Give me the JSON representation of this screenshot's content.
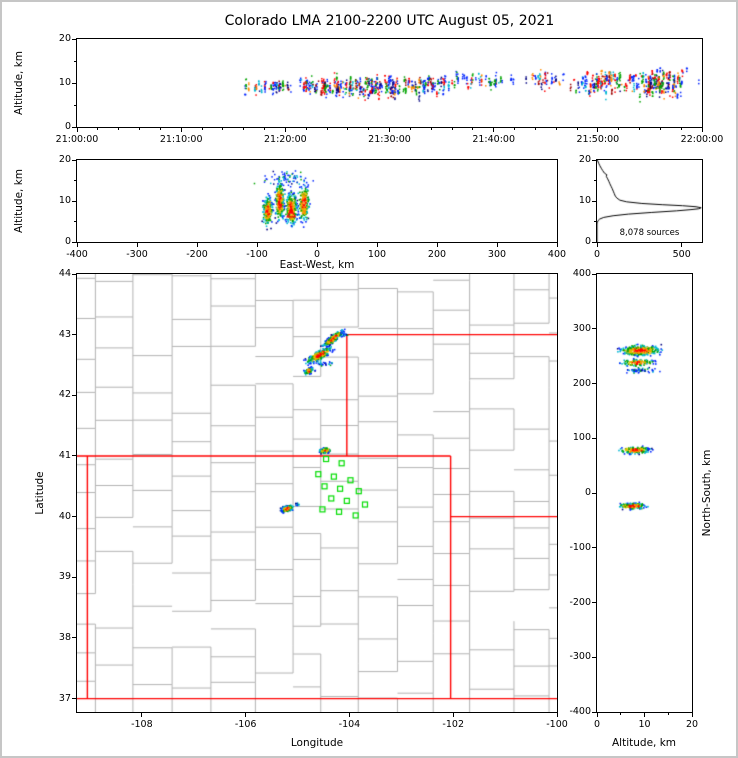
{
  "title": "Colorado LMA 2100-2200 UTC August 05, 2021",
  "palette": {
    "red": "#ff0000",
    "darkred": "#9b0000",
    "orange": "#ff8c00",
    "yellow": "#e3c000",
    "green": "#00a400",
    "cyan": "#00b8d4",
    "blue": "#0026ff",
    "darkblue": "#000080",
    "state_border": "#ff0000",
    "county_border": "#b2b2b2",
    "station": "#00dd00",
    "histogram_line": "#000000",
    "frame": "#000000"
  },
  "chart_data": [
    {
      "id": "time_height",
      "type": "scatter",
      "seed": 303,
      "ylabel": "Altitude, km",
      "x_axis": "Time (UTC) 21:00:00 to 22:00:00, seconds after 21:00:00",
      "xlim": [
        0,
        3600
      ],
      "ylim": [
        0,
        20
      ],
      "xticks": [
        {
          "v": 0,
          "t": "21:00:00"
        },
        {
          "v": 600,
          "t": "21:10:00"
        },
        {
          "v": 1200,
          "t": "21:20:00"
        },
        {
          "v": 1800,
          "t": "21:30:00"
        },
        {
          "v": 2400,
          "t": "21:40:00"
        },
        {
          "v": 3000,
          "t": "21:50:00"
        },
        {
          "v": 3600,
          "t": "22:00:00"
        }
      ],
      "yticks": [
        {
          "v": 0,
          "t": "0"
        },
        {
          "v": 10,
          "t": "10"
        },
        {
          "v": 20,
          "t": "20"
        }
      ],
      "yticks_minor": [
        5,
        15
      ],
      "xtick_minor_step": 120,
      "clusters": [
        {
          "cx": 1100,
          "cy": 9.2,
          "sx": 90,
          "sy": 1.2,
          "n": 130,
          "mode": "flashes"
        },
        {
          "cx": 1450,
          "cy": 9.0,
          "sx": 150,
          "sy": 1.8,
          "n": 320,
          "mode": "flashes"
        },
        {
          "cx": 1750,
          "cy": 9.0,
          "sx": 160,
          "sy": 2.0,
          "n": 330,
          "mode": "flashes"
        },
        {
          "cx": 2050,
          "cy": 9.5,
          "sx": 120,
          "sy": 1.8,
          "n": 180,
          "mode": "flashes"
        },
        {
          "cx": 2350,
          "cy": 10.5,
          "sx": 150,
          "sy": 1.6,
          "n": 130,
          "mode": "flashes"
        },
        {
          "cx": 2700,
          "cy": 10.8,
          "sx": 100,
          "sy": 1.4,
          "n": 80,
          "mode": "flashes"
        },
        {
          "cx": 3050,
          "cy": 10.0,
          "sx": 120,
          "sy": 2.2,
          "n": 280,
          "mode": "flashes"
        },
        {
          "cx": 3350,
          "cy": 10.0,
          "sx": 140,
          "sy": 2.8,
          "n": 430,
          "mode": "flashes"
        }
      ]
    },
    {
      "id": "ew_altitude",
      "type": "scatter",
      "seed": 404,
      "xlabel": "East-West, km",
      "ylabel": "Altitude, km",
      "xlim": [
        -400,
        400
      ],
      "ylim": [
        0,
        20
      ],
      "xticks": [
        {
          "v": -400,
          "t": "-400"
        },
        {
          "v": -300,
          "t": "-300"
        },
        {
          "v": -200,
          "t": "-200"
        },
        {
          "v": -100,
          "t": "-100"
        },
        {
          "v": 0,
          "t": "0"
        },
        {
          "v": 100,
          "t": "100"
        },
        {
          "v": 200,
          "t": "200"
        },
        {
          "v": 300,
          "t": "300"
        },
        {
          "v": 400,
          "t": "400"
        }
      ],
      "yticks": [
        {
          "v": 0,
          "t": "0"
        },
        {
          "v": 10,
          "t": "10"
        },
        {
          "v": 20,
          "t": "20"
        }
      ],
      "yticks_minor": [
        5,
        15
      ],
      "clusters": [
        {
          "cx": -82,
          "cy": 7.5,
          "sx": 5,
          "sy": 2.2,
          "n": 200,
          "mode": "density"
        },
        {
          "cx": -62,
          "cy": 10,
          "sx": 5,
          "sy": 3.0,
          "n": 240,
          "mode": "density"
        },
        {
          "cx": -43,
          "cy": 8,
          "sx": 6,
          "sy": 2.6,
          "n": 260,
          "mode": "density"
        },
        {
          "cx": -22,
          "cy": 9.5,
          "sx": 6,
          "sy": 2.8,
          "n": 200,
          "mode": "density"
        },
        {
          "cx": -50,
          "cy": 15.5,
          "sx": 28,
          "sy": 1.4,
          "n": 70,
          "mode": "sparse"
        }
      ],
      "markers": [
        {
          "shape": "triangle",
          "x": -43,
          "y": 7,
          "color": "#ff0000"
        }
      ]
    },
    {
      "id": "alt_histogram",
      "type": "line",
      "seed": 1,
      "annotation": "8,078 sources",
      "xlim": [
        0,
        620
      ],
      "ylim": [
        0,
        20
      ],
      "xticks": [
        {
          "v": 0,
          "t": "0"
        },
        {
          "v": 500,
          "t": "500"
        }
      ],
      "yticks": [
        {
          "v": 0,
          "t": "0"
        },
        {
          "v": 10,
          "t": "10"
        },
        {
          "v": 20,
          "t": "20"
        }
      ],
      "yticks_minor": [
        5,
        15
      ],
      "profile": {
        "alt_km": [
          0,
          4.4,
          4.8,
          5.2,
          5.6,
          6.0,
          6.4,
          6.8,
          7.2,
          7.6,
          7.9,
          8.1,
          8.35,
          8.6,
          8.85,
          9.1,
          9.4,
          9.8,
          10.2,
          10.7,
          11.2,
          11.8,
          12.4,
          13.0,
          13.6,
          14.2,
          14.8,
          15.4,
          16.0,
          16.4,
          16.8,
          17.4,
          18.0,
          18.6,
          19.2,
          19.8,
          20.0
        ],
        "count": [
          0,
          0,
          2,
          6,
          16,
          40,
          95,
          185,
          320,
          470,
          555,
          600,
          615,
          585,
          505,
          385,
          265,
          175,
          135,
          118,
          108,
          102,
          96,
          90,
          83,
          76,
          70,
          63,
          55,
          58,
          44,
          34,
          25,
          17,
          10,
          4,
          2
        ]
      }
    },
    {
      "id": "plan_map",
      "type": "scatter",
      "seed": 202,
      "xlabel": "Longitude",
      "ylabel": "Latitude",
      "xlim": [
        -109.25,
        -100.0
      ],
      "ylim": [
        36.78,
        44.0
      ],
      "xticks": [
        {
          "v": -108,
          "t": "-108"
        },
        {
          "v": -106,
          "t": "-106"
        },
        {
          "v": -104,
          "t": "-104"
        },
        {
          "v": -102,
          "t": "-102"
        },
        {
          "v": -100,
          "t": "-100"
        }
      ],
      "yticks": [
        {
          "v": 37,
          "t": "37"
        },
        {
          "v": 38,
          "t": "38"
        },
        {
          "v": 39,
          "t": "39"
        },
        {
          "v": 40,
          "t": "40"
        },
        {
          "v": 41,
          "t": "41"
        },
        {
          "v": 42,
          "t": "42"
        },
        {
          "v": 43,
          "t": "43"
        },
        {
          "v": 44,
          "t": "44"
        }
      ],
      "state_lines": [
        [
          -109.05,
          37,
          -109.05,
          41
        ],
        [
          -109.25,
          41,
          -102.05,
          41
        ],
        [
          -102.05,
          41,
          -102.05,
          37
        ],
        [
          -109.25,
          37,
          -100,
          37
        ],
        [
          -104.05,
          41,
          -104.05,
          43
        ],
        [
          -104.05,
          43,
          -100,
          43
        ],
        [
          -102.05,
          40,
          -100,
          40
        ]
      ],
      "stations": [
        [
          -104.45,
          40.95
        ],
        [
          -104.15,
          40.88
        ],
        [
          -104.6,
          40.7
        ],
        [
          -104.3,
          40.66
        ],
        [
          -103.98,
          40.6
        ],
        [
          -104.48,
          40.5
        ],
        [
          -104.18,
          40.46
        ],
        [
          -103.82,
          40.42
        ],
        [
          -104.35,
          40.3
        ],
        [
          -104.05,
          40.26
        ],
        [
          -104.52,
          40.12
        ],
        [
          -104.2,
          40.08
        ],
        [
          -103.88,
          40.02
        ],
        [
          -103.7,
          40.2
        ]
      ],
      "clusters": [
        {
          "cx": -104.32,
          "cy": 42.93,
          "sx": 0.14,
          "sy": 0.035,
          "angle": 35,
          "n": 260,
          "mode": "density"
        },
        {
          "cx": -104.1,
          "cy": 43.0,
          "sx": 0.05,
          "sy": 0.02,
          "angle": 0,
          "n": 25,
          "mode": "sparse"
        },
        {
          "cx": -104.58,
          "cy": 42.66,
          "sx": 0.16,
          "sy": 0.045,
          "angle": 25,
          "n": 300,
          "mode": "density"
        },
        {
          "cx": -104.5,
          "cy": 42.52,
          "sx": 0.12,
          "sy": 0.03,
          "angle": 10,
          "n": 30,
          "mode": "sparse"
        },
        {
          "cx": -104.78,
          "cy": 42.4,
          "sx": 0.06,
          "sy": 0.03,
          "angle": 20,
          "n": 60,
          "mode": "density"
        },
        {
          "cx": -104.47,
          "cy": 41.09,
          "sx": 0.07,
          "sy": 0.025,
          "angle": 5,
          "n": 150,
          "mode": "density"
        },
        {
          "cx": -105.2,
          "cy": 40.13,
          "sx": 0.07,
          "sy": 0.03,
          "angle": 15,
          "n": 170,
          "mode": "density"
        },
        {
          "cx": -105.0,
          "cy": 40.2,
          "sx": 0.03,
          "sy": 0.015,
          "angle": 0,
          "n": 15,
          "mode": "sparse"
        }
      ]
    },
    {
      "id": "ns_altitude",
      "type": "scatter",
      "seed": 505,
      "xlabel": "Altitude, km",
      "ylabel": "North-South, km",
      "xlim": [
        0,
        20
      ],
      "ylim": [
        -400,
        400
      ],
      "xticks": [
        {
          "v": 0,
          "t": "0"
        },
        {
          "v": 10,
          "t": "10"
        },
        {
          "v": 20,
          "t": "20"
        }
      ],
      "xticks_minor": [
        5,
        15
      ],
      "yticks": [
        {
          "v": 400,
          "t": "400"
        },
        {
          "v": 300,
          "t": "300"
        },
        {
          "v": 200,
          "t": "200"
        },
        {
          "v": 100,
          "t": "100"
        },
        {
          "v": 0,
          "t": "0"
        },
        {
          "v": -100,
          "t": "-100"
        },
        {
          "v": -200,
          "t": "-200"
        },
        {
          "v": -300,
          "t": "-300"
        },
        {
          "v": -400,
          "t": "-400"
        }
      ],
      "clusters": [
        {
          "cx": 9,
          "cy": 260,
          "sx": 2.6,
          "sy": 6,
          "n": 320,
          "mode": "density"
        },
        {
          "cx": 8.5,
          "cy": 238,
          "sx": 2.2,
          "sy": 4,
          "n": 110,
          "mode": "density"
        },
        {
          "cx": 9.5,
          "cy": 224,
          "sx": 2.0,
          "sy": 3,
          "n": 60,
          "mode": "sparse"
        },
        {
          "cx": 8,
          "cy": 78,
          "sx": 2.0,
          "sy": 4,
          "n": 170,
          "mode": "density"
        },
        {
          "cx": 7.5,
          "cy": -24,
          "sx": 1.8,
          "sy": 3.5,
          "n": 170,
          "mode": "density"
        }
      ]
    }
  ]
}
